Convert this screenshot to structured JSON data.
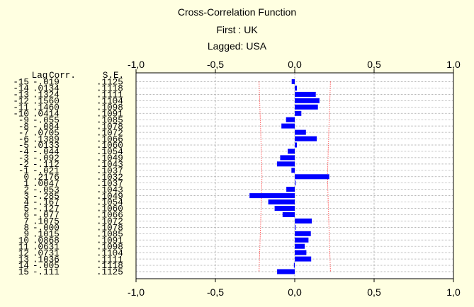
{
  "chart_data": {
    "type": "bar",
    "orientation": "horizontal",
    "title": "Cross-Correlation Function",
    "subtitle_first": "First : UK",
    "subtitle_lagged": "Lagged: USA",
    "table_header": {
      "lag": "Lag",
      "corr": "Corr.",
      "se": "S.E."
    },
    "xlim": [
      -1.0,
      1.0
    ],
    "xticks": [
      "-1,0",
      "-0,5",
      "0,0",
      "0,5",
      "1,0"
    ],
    "xtick_values": [
      -1.0,
      -0.5,
      0.0,
      0.5,
      1.0
    ],
    "bar_color": "#0000ff",
    "confidence_color": "#ff0000",
    "rows": [
      {
        "lag": "-15",
        "corr": "-.019",
        "se": ".1125",
        "value": -0.019
      },
      {
        "lag": "-14",
        "corr": ".0134",
        "se": ".1118",
        "value": 0.0134
      },
      {
        "lag": "-13",
        "corr": ".1324",
        "se": ".1111",
        "value": 0.1324
      },
      {
        "lag": "-12",
        "corr": ".1560",
        "se": ".1104",
        "value": 0.156
      },
      {
        "lag": "-11",
        "corr": ".1460",
        "se": ".1098",
        "value": 0.146
      },
      {
        "lag": "-10",
        "corr": ".0414",
        "se": ".1091",
        "value": 0.0414
      },
      {
        "lag": "-9",
        "corr": "-.055",
        "se": ".1085",
        "value": -0.055
      },
      {
        "lag": "-8",
        "corr": "-.084",
        "se": ".1078",
        "value": -0.084
      },
      {
        "lag": "-7",
        "corr": ".0705",
        "se": ".1072",
        "value": 0.0705
      },
      {
        "lag": "-6",
        "corr": ".1389",
        "se": ".1066",
        "value": 0.1389
      },
      {
        "lag": "-5",
        "corr": ".0133",
        "se": ".1060",
        "value": 0.0133
      },
      {
        "lag": "-4",
        "corr": "-.044",
        "se": ".1054",
        "value": -0.044
      },
      {
        "lag": "-3",
        "corr": "-.092",
        "se": ".1049",
        "value": -0.092
      },
      {
        "lag": "-2",
        "corr": "-.112",
        "se": ".1043",
        "value": -0.112
      },
      {
        "lag": "-1",
        "corr": "-.021",
        "se": ".1037",
        "value": -0.021
      },
      {
        "lag": "0",
        "corr": ".2176",
        "se": ".1032",
        "value": 0.2176
      },
      {
        "lag": "1",
        "corr": ".0047",
        "se": ".1037",
        "value": 0.0047
      },
      {
        "lag": "2",
        "corr": "-.053",
        "se": ".1043",
        "value": -0.053
      },
      {
        "lag": "3",
        "corr": "-.285",
        "se": ".1049",
        "value": -0.285
      },
      {
        "lag": "4",
        "corr": "-.167",
        "se": ".1054",
        "value": -0.167
      },
      {
        "lag": "5",
        "corr": "-.127",
        "se": ".1060",
        "value": -0.127
      },
      {
        "lag": "6",
        "corr": "-.077",
        "se": ".1066",
        "value": -0.077
      },
      {
        "lag": "7",
        "corr": ".1075",
        "se": ".1072",
        "value": 0.1075
      },
      {
        "lag": "8",
        "corr": "-.000",
        "se": ".1078",
        "value": -0.0
      },
      {
        "lag": "9",
        "corr": ".1015",
        "se": ".1085",
        "value": 0.1015
      },
      {
        "lag": "10",
        "corr": ".0868",
        "se": ".1091",
        "value": 0.0868
      },
      {
        "lag": "11",
        "corr": ".0631",
        "se": ".1098",
        "value": 0.0631
      },
      {
        "lag": "12",
        "corr": ".0731",
        "se": ".1104",
        "value": 0.0731
      },
      {
        "lag": "13",
        "corr": ".1036",
        "se": ".1111",
        "value": 0.1036
      },
      {
        "lag": "14",
        "corr": "-.005",
        "se": ".1118",
        "value": -0.005
      },
      {
        "lag": "15",
        "corr": "-.111",
        "se": ".1125",
        "value": -0.111
      }
    ],
    "grid": true,
    "confidence_limit_lines": true
  }
}
